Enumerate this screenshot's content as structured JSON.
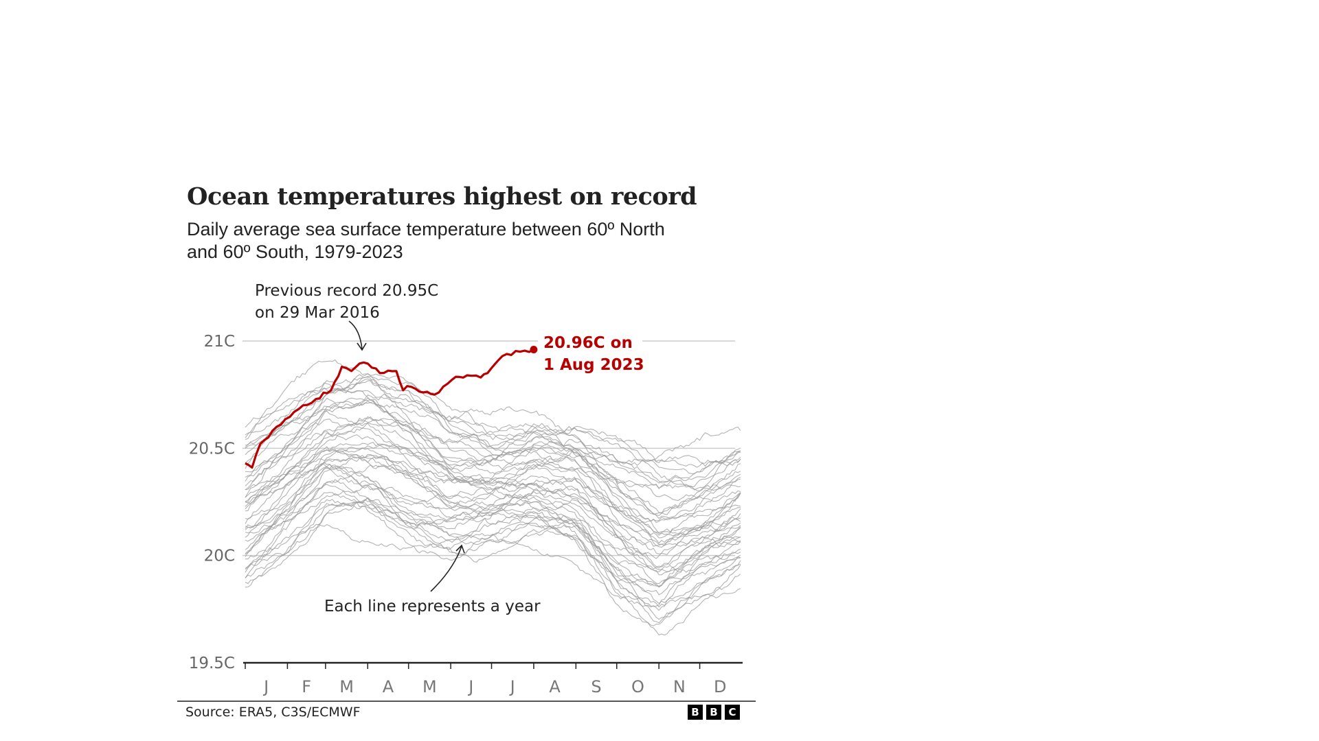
{
  "header": {
    "title": "Ocean temperatures highest on record",
    "subtitle_line1": "Daily average sea surface temperature between 60º North",
    "subtitle_line2": "and 60º South, 1979-2023"
  },
  "footer": {
    "source": "Source: ERA5, C3S/ECMWF",
    "logo_letters": [
      "B",
      "B",
      "C"
    ]
  },
  "colors": {
    "highlight": "#b80000",
    "year_lines": "#9a9a9a",
    "grid": "#cccccc",
    "axis": "#222222",
    "text": "#222222"
  },
  "chart_data": {
    "type": "line",
    "title": "Ocean temperatures highest on record",
    "subtitle": "Daily average sea surface temperature between 60º North and 60º South, 1979-2023",
    "xlabel": "",
    "ylabel": "",
    "x_unit": "day of year",
    "xlim": [
      1,
      365
    ],
    "ylim": [
      19.5,
      21.0
    ],
    "y_ticks": [
      19.5,
      20.0,
      20.5,
      21.0
    ],
    "y_tick_labels": [
      "19.5C",
      "20C",
      "20.5C",
      "21C"
    ],
    "x_tick_labels": [
      "J",
      "F",
      "M",
      "A",
      "M",
      "J",
      "J",
      "A",
      "S",
      "O",
      "N",
      "D"
    ],
    "grid": "horizontal",
    "legend": "none",
    "years": [
      1979,
      2023
    ],
    "highlight_series": {
      "name": "2023",
      "x": [
        1,
        6,
        12,
        24,
        37,
        53,
        64,
        72,
        79,
        88,
        100,
        112,
        117,
        120,
        132,
        140,
        153,
        164,
        174,
        179,
        190,
        203,
        213
      ],
      "y": [
        20.43,
        20.41,
        20.52,
        20.6,
        20.67,
        20.73,
        20.77,
        20.88,
        20.86,
        20.9,
        20.85,
        20.86,
        20.77,
        20.79,
        20.76,
        20.75,
        20.82,
        20.84,
        20.83,
        20.85,
        20.93,
        20.95,
        20.96
      ]
    },
    "background_series_summary": {
      "description": "One grey line per year 1979-2022; envelope approximated",
      "x": [
        1,
        32,
        60,
        91,
        121,
        152,
        182,
        213,
        244,
        274,
        305,
        335,
        365
      ],
      "upper": [
        20.62,
        20.78,
        20.92,
        20.95,
        20.86,
        20.7,
        20.66,
        20.72,
        20.67,
        20.58,
        20.5,
        20.52,
        20.62
      ],
      "median": [
        20.18,
        20.33,
        20.45,
        20.42,
        20.33,
        20.26,
        20.28,
        20.3,
        20.23,
        20.07,
        20.04,
        20.1,
        20.18
      ],
      "lower": [
        19.8,
        19.95,
        20.12,
        20.08,
        19.98,
        19.95,
        20.0,
        20.02,
        19.97,
        19.72,
        19.6,
        19.75,
        19.82
      ]
    },
    "annotations": [
      {
        "text_line1": "Previous record 20.95C",
        "text_line2": "on 29 Mar 2016",
        "x": 88,
        "y": 20.95
      },
      {
        "text_line1": "20.96C on",
        "text_line2": "1 Aug 2023",
        "x": 213,
        "y": 20.96,
        "color": "#b80000"
      },
      {
        "text_line1": "Each line represents a year",
        "x": 155,
        "y": 20.06
      }
    ]
  }
}
